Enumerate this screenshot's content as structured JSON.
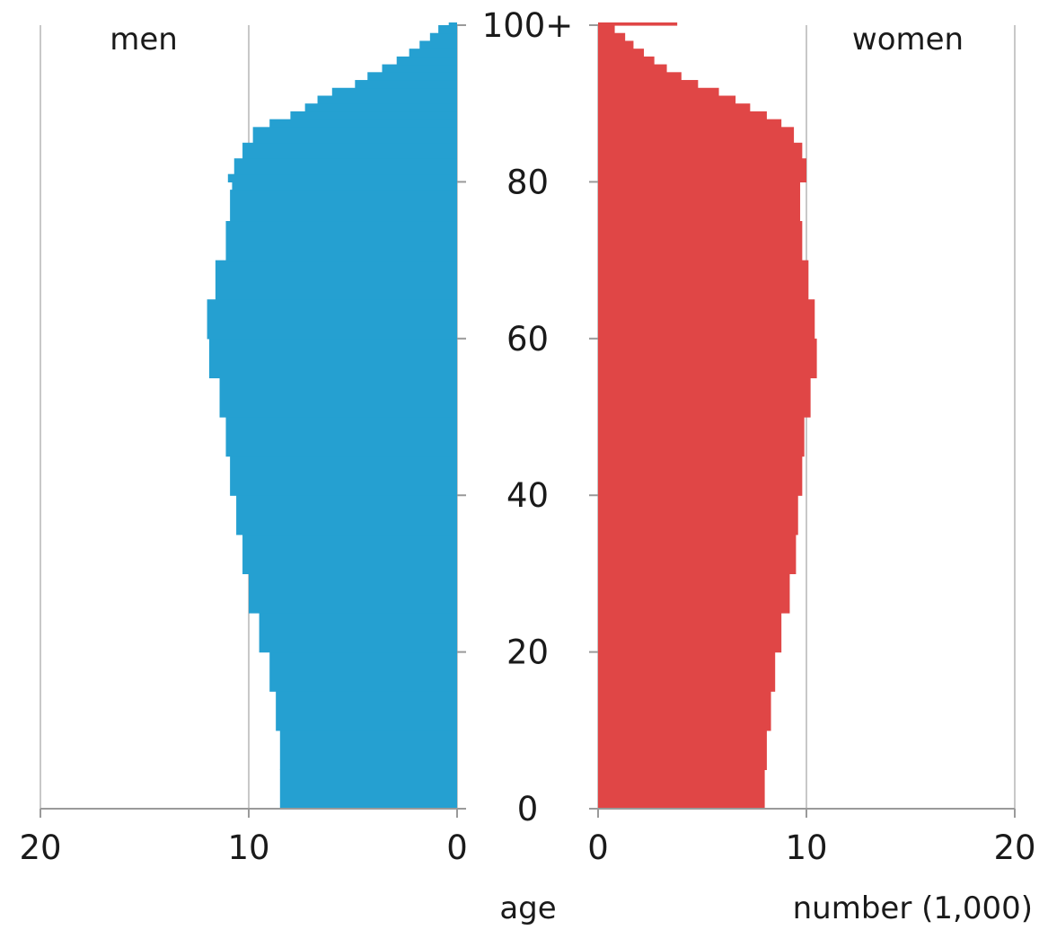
{
  "chart_data": {
    "type": "bar",
    "subtype": "population-pyramid",
    "orientation": "horizontal",
    "title": "",
    "ylabel": "age",
    "xlabel": "number (1,000)",
    "age_ticks": [
      0,
      20,
      40,
      60,
      80,
      100
    ],
    "age_tick_labels": [
      "0",
      "20",
      "40",
      "60",
      "80",
      "100+"
    ],
    "x_ticks": [
      0,
      10,
      20
    ],
    "x_tick_labels": [
      "0",
      "10",
      "20"
    ],
    "xlim": [
      0,
      20
    ],
    "ylim": [
      0,
      100
    ],
    "grid": "vertical gridlines at 0, 10, 20 on each side",
    "legend": "none",
    "series": [
      {
        "name": "men",
        "side": "left",
        "color": "#25A0D1",
        "x": [
          0,
          5,
          10,
          15,
          20,
          25,
          30,
          35,
          40,
          45,
          50,
          55,
          60,
          65,
          70,
          75,
          79,
          80,
          81,
          83,
          85,
          87,
          88,
          89,
          90,
          91,
          92,
          93,
          94,
          95,
          96,
          97,
          98,
          99,
          100
        ],
        "values": [
          8.5,
          8.5,
          8.7,
          9.0,
          9.5,
          10.0,
          10.3,
          10.6,
          10.9,
          11.1,
          11.4,
          11.9,
          12.0,
          11.6,
          11.1,
          10.9,
          10.8,
          11.0,
          10.7,
          10.3,
          9.8,
          9.0,
          8.0,
          7.3,
          6.7,
          6.0,
          4.9,
          4.3,
          3.6,
          2.9,
          2.3,
          1.8,
          1.3,
          0.9,
          0.4
        ]
      },
      {
        "name": "women",
        "side": "right",
        "color": "#E04646",
        "x": [
          0,
          5,
          10,
          15,
          20,
          25,
          30,
          35,
          40,
          45,
          50,
          55,
          60,
          65,
          70,
          75,
          79,
          80,
          81,
          83,
          85,
          87,
          88,
          89,
          90,
          91,
          92,
          93,
          94,
          95,
          96,
          97,
          98,
          99,
          100
        ],
        "values": [
          8.0,
          8.1,
          8.3,
          8.5,
          8.8,
          9.2,
          9.5,
          9.6,
          9.8,
          9.9,
          10.2,
          10.5,
          10.4,
          10.1,
          9.8,
          9.7,
          9.7,
          10.0,
          10.0,
          9.8,
          9.4,
          8.8,
          8.1,
          7.3,
          6.6,
          5.8,
          4.8,
          4.0,
          3.3,
          2.7,
          2.2,
          1.7,
          1.3,
          0.8,
          3.8
        ]
      }
    ]
  }
}
